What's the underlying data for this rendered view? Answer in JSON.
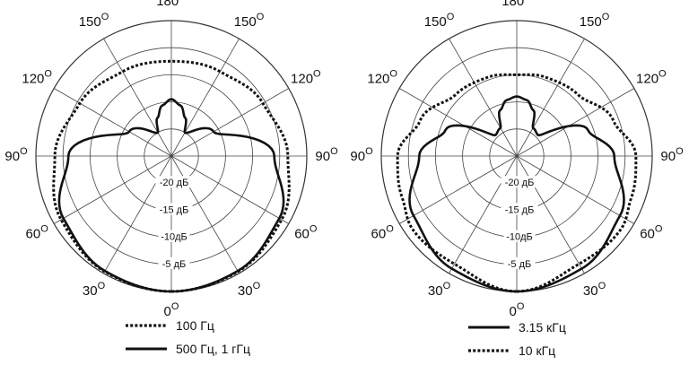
{
  "chart_data": [
    {
      "type": "polar",
      "angle_labels": [
        "0",
        "30",
        "60",
        "90",
        "120",
        "150",
        "180",
        "150",
        "120",
        "90",
        "60",
        "30"
      ],
      "angle_suffix": "O",
      "angles_deg": [
        0,
        30,
        60,
        90,
        120,
        150,
        180,
        210,
        240,
        270,
        300,
        330
      ],
      "ring_labels": [
        "-5 дБ",
        "-10дБ",
        "-15 дБ",
        "-20 дБ"
      ],
      "rlim_db": [
        -25,
        0
      ],
      "grid": true,
      "series": [
        {
          "name": "100 Гц",
          "style": "dotted",
          "color": "#111111",
          "angles_deg": [
            0,
            30,
            60,
            90,
            120,
            150,
            180,
            210,
            240,
            270,
            300,
            330
          ],
          "values_db": [
            0,
            -0.4,
            -1.5,
            -3.5,
            -5.5,
            -7,
            -7.5,
            -7,
            -5.5,
            -3.5,
            -1.5,
            -0.4
          ]
        },
        {
          "name": "500 Гц, 1 гГц",
          "style": "solid",
          "color": "#111111",
          "angles_deg": [
            0,
            30,
            60,
            90,
            120,
            150,
            160,
            170,
            180,
            190,
            200,
            210,
            240,
            270,
            300,
            330
          ],
          "values_db": [
            0,
            -0.5,
            -2,
            -6,
            -16,
            -20,
            -17.5,
            -15.5,
            -14.5,
            -15.5,
            -17.5,
            -20,
            -16,
            -6,
            -2,
            -0.5
          ]
        }
      ]
    },
    {
      "type": "polar",
      "angle_labels": [
        "0",
        "30",
        "60",
        "90",
        "120",
        "150",
        "180",
        "150",
        "120",
        "90",
        "60",
        "30"
      ],
      "angle_suffix": "O",
      "angles_deg": [
        0,
        30,
        60,
        90,
        120,
        150,
        180,
        210,
        240,
        270,
        300,
        330
      ],
      "ring_labels": [
        "-5 дБ",
        "-10дБ",
        "-15 дБ",
        "-20 дБ"
      ],
      "rlim_db": [
        -25,
        0
      ],
      "grid": true,
      "series": [
        {
          "name": "3.15 кГц",
          "style": "solid",
          "color": "#111111",
          "angles_deg": [
            0,
            30,
            60,
            90,
            110,
            135,
            150,
            160,
            170,
            180,
            190,
            200,
            210,
            225,
            250,
            270,
            300,
            330
          ],
          "values_db": [
            0,
            -1,
            -3,
            -7,
            -11,
            -19.5,
            -19,
            -16,
            -14.5,
            -14,
            -14.5,
            -16,
            -19,
            -19.5,
            -11,
            -7,
            -3,
            -1
          ],
          "smooth": true
        },
        {
          "name": "10 кГц",
          "style": "dotted",
          "color": "#111111",
          "angles_deg": [
            0,
            30,
            55,
            70,
            90,
            110,
            135,
            160,
            180,
            200,
            225,
            250,
            270,
            290,
            305,
            330
          ],
          "values_db": [
            0,
            -2,
            -1.5,
            -2.5,
            -3,
            -6,
            -9,
            -9.5,
            -10,
            -9.5,
            -9,
            -6,
            -3,
            -2.5,
            -1.5,
            -2
          ],
          "smooth": true
        }
      ]
    }
  ]
}
